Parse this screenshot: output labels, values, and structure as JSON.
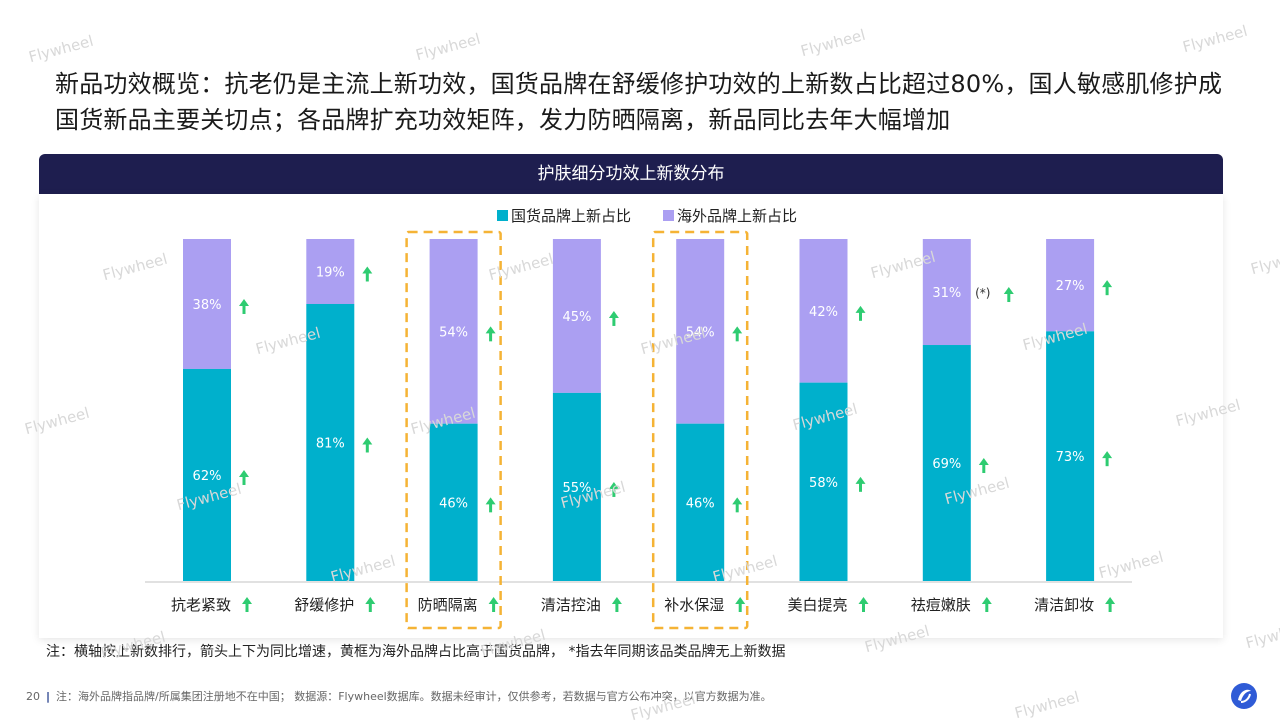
{
  "headline": "新品功效概览：抗老仍是主流上新功效，国货品牌在舒缓修护功效的上新数占比超过80%，国人敏感肌修护成国货新品主要关切点；各品牌扩充功效矩阵，发力防晒隔离，新品同比去年大幅增加",
  "panel_title": "护肤细分功效上新数分布",
  "note": "注：横轴按上新数排行，箭头上下为同比增速，黄框为海外品牌占比高于国货品牌， *指去年同期该品类品牌无上新数据",
  "footer": {
    "page": "20",
    "text": "注：海外品牌指品牌/所属集团注册地不在中国； 数据源：Flywheel数据库。数据未经审计，仅供参考，若数据与官方公布冲突，以官方数据为准。"
  },
  "watermark": "Flywheel",
  "colors": {
    "domestic": "#00b0cc",
    "overseas": "#ab9ff2",
    "arrow": "#2ecc71",
    "highlight": "#f5b335",
    "header_bg": "#1e1e4f"
  },
  "icons": {
    "trend": "arrow-up-icon",
    "logo": "flywheel-logo-icon"
  },
  "chart_data": {
    "type": "bar",
    "stacked": true,
    "title": "护肤细分功效上新数分布",
    "legend_position": "top-center",
    "categories": [
      "抗老紧致",
      "舒缓修护",
      "防晒隔离",
      "清洁控油",
      "补水保湿",
      "美白提亮",
      "祛痘嫩肤",
      "清洁卸妆"
    ],
    "series": [
      {
        "name": "国货品牌上新占比",
        "values": [
          62,
          81,
          46,
          55,
          46,
          58,
          69,
          73
        ],
        "labels": [
          "62%",
          "81%",
          "46%",
          "55%",
          "46%",
          "58%",
          "69%",
          "73%"
        ]
      },
      {
        "name": "海外品牌上新占比",
        "values": [
          38,
          19,
          54,
          45,
          54,
          42,
          31,
          27
        ],
        "labels": [
          "38%",
          "19%",
          "54%",
          "45%",
          "54%",
          "42%",
          "31%",
          "27%"
        ]
      }
    ],
    "category_trend": [
      "up",
      "up",
      "up",
      "up",
      "up",
      "up",
      "up",
      "up"
    ],
    "domestic_trend": [
      "up",
      "up",
      "up",
      "up",
      "up",
      "up",
      "up",
      "up"
    ],
    "overseas_trend": [
      "up",
      "up",
      "up",
      "up",
      "up",
      "up",
      "up",
      "up"
    ],
    "overseas_annotation": [
      "",
      "",
      "",
      "",
      "",
      "",
      "(*)",
      ""
    ],
    "highlighted_categories": [
      "防晒隔离",
      "补水保湿"
    ],
    "ylim": [
      0,
      100
    ]
  }
}
